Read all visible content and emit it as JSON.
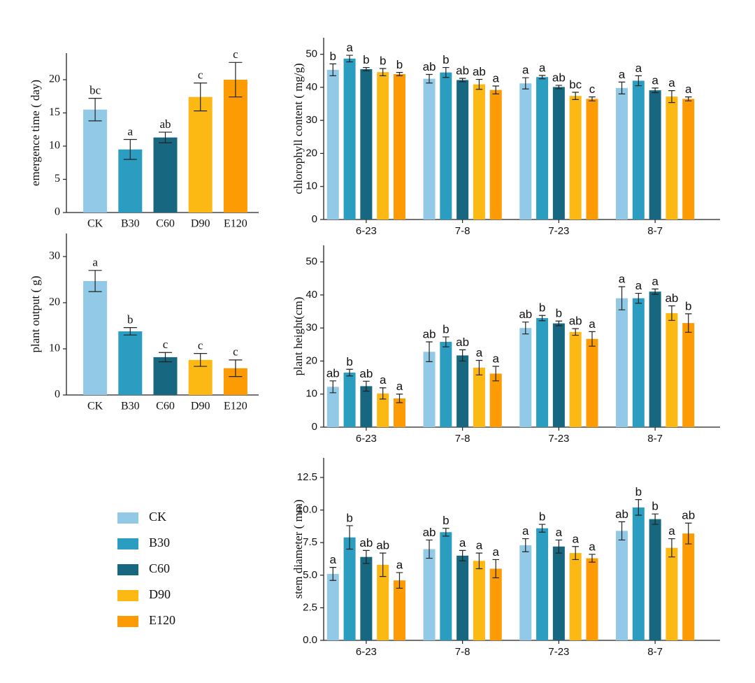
{
  "chart_data": [
    {
      "type": "bar",
      "y_label": "emergence time ( day)",
      "categories": [
        "CK",
        "B30",
        "C60",
        "D90",
        "E120"
      ],
      "values": [
        15.5,
        9.5,
        11.3,
        17.4,
        20.0
      ],
      "errors": [
        1.7,
        1.5,
        0.8,
        2.1,
        2.6
      ],
      "letters": [
        "bc",
        "a",
        "ab",
        "c",
        "c"
      ],
      "colors": [
        "#92c9e6",
        "#2a9dc0",
        "#16677f",
        "#fcb813",
        "#fd9b05"
      ],
      "ylim": [
        0,
        24
      ],
      "yticks": [
        0,
        5,
        10,
        15,
        20
      ]
    },
    {
      "type": "bar",
      "y_label": "plant output ( g)",
      "categories": [
        "CK",
        "B30",
        "C60",
        "D90",
        "E120"
      ],
      "values": [
        24.7,
        13.8,
        8.2,
        7.6,
        5.8
      ],
      "errors": [
        2.3,
        0.8,
        1.0,
        1.4,
        1.8
      ],
      "letters": [
        "a",
        "b",
        "c",
        "c",
        "c"
      ],
      "colors": [
        "#92c9e6",
        "#2a9dc0",
        "#16677f",
        "#fcb813",
        "#fd9b05"
      ],
      "ylim": [
        0,
        35
      ],
      "yticks": [
        0,
        10,
        20,
        30
      ]
    },
    {
      "type": "bar",
      "y_label": "chlorophyll content ( mg/g)",
      "categories": [
        "6-23",
        "7-8",
        "7-23",
        "8-7"
      ],
      "series": [
        {
          "name": "CK",
          "color": "#92c9e6",
          "values": [
            45.3,
            42.6,
            41.2,
            39.8
          ],
          "errors": [
            1.8,
            1.3,
            1.7,
            1.8
          ],
          "letters": [
            "b",
            "ab",
            "a",
            "a"
          ]
        },
        {
          "name": "B30",
          "color": "#2a9dc0",
          "values": [
            48.7,
            44.5,
            43.1,
            42.0
          ],
          "errors": [
            1.0,
            1.5,
            0.5,
            1.5
          ],
          "letters": [
            "a",
            "b",
            "a",
            "a"
          ]
        },
        {
          "name": "C60",
          "color": "#16677f",
          "values": [
            45.5,
            42.2,
            40.1,
            39.1
          ],
          "errors": [
            0.5,
            0.5,
            0.5,
            0.7
          ],
          "letters": [
            "b",
            "ab",
            "ab",
            "a"
          ]
        },
        {
          "name": "D90",
          "color": "#fcb813",
          "values": [
            44.6,
            40.9,
            37.4,
            37.2
          ],
          "errors": [
            1.1,
            1.5,
            1.1,
            1.8
          ],
          "letters": [
            "b",
            "ab",
            "bc",
            "a"
          ]
        },
        {
          "name": "E120",
          "color": "#fd9b05",
          "values": [
            44.0,
            39.2,
            36.5,
            36.5
          ],
          "errors": [
            0.5,
            1.2,
            0.6,
            0.6
          ],
          "letters": [
            "b",
            "a",
            "c",
            "a"
          ]
        }
      ],
      "ylim": [
        0,
        55
      ],
      "yticks": [
        0,
        10,
        20,
        30,
        40,
        50
      ]
    },
    {
      "type": "bar",
      "y_label": "plant height(cm)",
      "categories": [
        "6-23",
        "7-8",
        "7-23",
        "8-7"
      ],
      "series": [
        {
          "name": "CK",
          "color": "#92c9e6",
          "values": [
            12.2,
            22.8,
            30.0,
            39.0
          ],
          "errors": [
            1.8,
            3.0,
            1.8,
            3.5
          ],
          "letters": [
            "ab",
            "ab",
            "ab",
            "a"
          ]
        },
        {
          "name": "B30",
          "color": "#2a9dc0",
          "values": [
            16.5,
            25.8,
            33.0,
            39.0
          ],
          "errors": [
            1.0,
            1.5,
            0.8,
            1.5
          ],
          "letters": [
            "b",
            "b",
            "b",
            "a"
          ]
        },
        {
          "name": "C60",
          "color": "#16677f",
          "values": [
            12.4,
            21.7,
            31.4,
            41.0
          ],
          "errors": [
            1.5,
            1.7,
            0.7,
            0.8
          ],
          "letters": [
            "ab",
            "ab",
            "b",
            "a"
          ]
        },
        {
          "name": "D90",
          "color": "#fcb813",
          "values": [
            10.2,
            18.0,
            28.8,
            34.5
          ],
          "errors": [
            1.7,
            2.2,
            1.0,
            2.2
          ],
          "letters": [
            "a",
            "a",
            "ab",
            "ab"
          ]
        },
        {
          "name": "E120",
          "color": "#fd9b05",
          "values": [
            8.7,
            16.2,
            26.7,
            31.5
          ],
          "errors": [
            1.3,
            2.2,
            2.2,
            2.8
          ],
          "letters": [
            "a",
            "a",
            "a",
            "b"
          ]
        }
      ],
      "ylim": [
        0,
        55
      ],
      "yticks": [
        0,
        10,
        20,
        30,
        40,
        50
      ]
    },
    {
      "type": "bar",
      "y_label": "stem diameter ( mm)",
      "legend": "left",
      "categories": [
        "6-23",
        "7-8",
        "7-23",
        "8-7"
      ],
      "series": [
        {
          "name": "CK",
          "color": "#92c9e6",
          "values": [
            5.1,
            7.0,
            7.3,
            8.4
          ],
          "errors": [
            0.5,
            0.7,
            0.5,
            0.7
          ],
          "letters": [
            "a",
            "ab",
            "a",
            "ab"
          ]
        },
        {
          "name": "B30",
          "color": "#2a9dc0",
          "values": [
            7.9,
            8.3,
            8.6,
            10.2
          ],
          "errors": [
            0.9,
            0.3,
            0.3,
            0.6
          ],
          "letters": [
            "b",
            "b",
            "b",
            "b"
          ]
        },
        {
          "name": "C60",
          "color": "#16677f",
          "values": [
            6.4,
            6.5,
            7.2,
            9.3
          ],
          "errors": [
            0.5,
            0.4,
            0.5,
            0.4
          ],
          "letters": [
            "ab",
            "a",
            "a",
            "b"
          ]
        },
        {
          "name": "D90",
          "color": "#fcb813",
          "values": [
            5.8,
            6.1,
            6.7,
            7.1
          ],
          "errors": [
            0.9,
            0.6,
            0.5,
            0.7
          ],
          "letters": [
            "ab",
            "a",
            "a",
            "a"
          ]
        },
        {
          "name": "E120",
          "color": "#fd9b05",
          "values": [
            4.6,
            5.5,
            6.3,
            8.2
          ],
          "errors": [
            0.6,
            0.7,
            0.3,
            0.8
          ],
          "letters": [
            "a",
            "a",
            "a",
            "ab"
          ]
        }
      ],
      "ylim": [
        0,
        14
      ],
      "yticks": [
        {
          "value": 0,
          "label": "0.0"
        },
        2.5,
        {
          "value": 5,
          "label": "5.0"
        },
        7.5,
        {
          "value": 10,
          "label": "10.0"
        },
        12.5
      ]
    }
  ]
}
